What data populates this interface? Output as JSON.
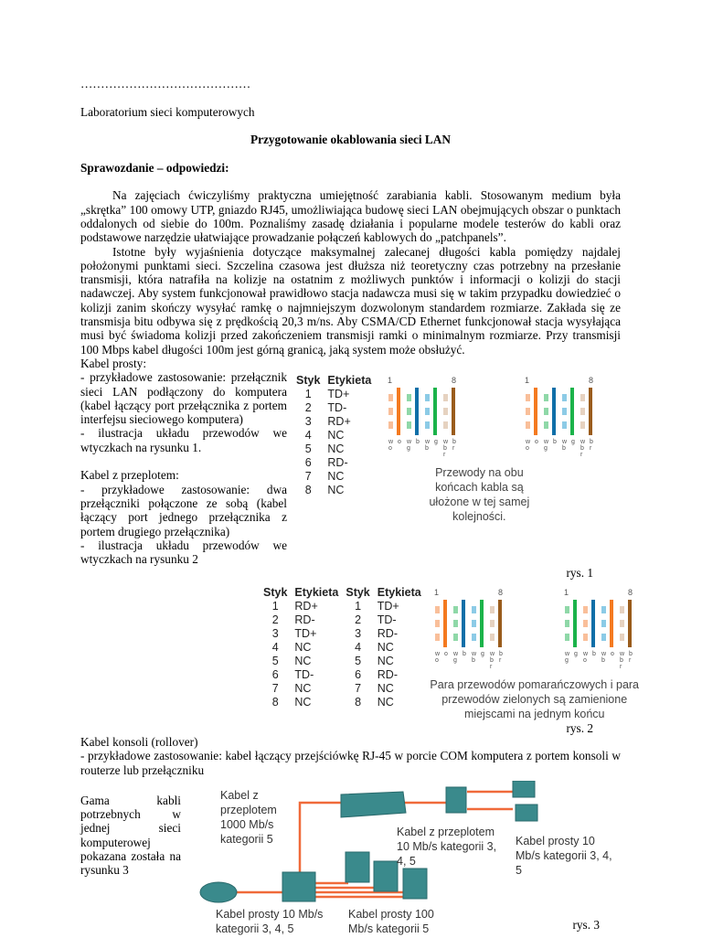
{
  "header": {
    "dots": "……………………………………",
    "lab": "Laboratorium sieci komputerowych",
    "title": "Przygotowanie okablowania sieci LAN",
    "section": "Sprawozdanie – odpowiedzi:"
  },
  "paragraphs": [
    "Na zajęciach ćwiczyliśmy praktyczna umiejętność zarabiania kabli. Stosowanym medium była „skrętka” 100 omowy UTP, gniazdo RJ45, umożliwiająca budowę sieci LAN obejmujących obszar o punktach oddalonych od siebie do 100m. Poznaliśmy zasadę działania i popularne modele testerów do kabli oraz podstawowe narzędzie ułatwiające prowadzanie połączeń kablowych do „patchpanels”.",
    "Istotne były wyjaśnienia dotyczące maksymalnej zalecanej długości kabla pomiędzy najdalej położonymi punktami sieci. Szczelina czasowa jest dłuższa niż teoretyczny czas potrzebny na przesłanie transmisji, która natrafiła na kolizje na ostatnim z możliwych punktów i informacji o kolizji do stacji nadawczej. Aby system funkcjonował prawidłowo stacja nadawcza musi się w takim przypadku dowiedzieć o kolizji zanim skończy wysyłać ramkę o najmniejszym dozwolonym standardem rozmiarze. Zakłada się ze transmisja bitu odbywa się z prędkością 20,3 m/ns.  Aby CSMA/CD Ethernet funkcjonował stacja wysyłająca musi być świadoma kolizji przed zakończeniem transmisji ramki o minimalnym rozmiarze. Przy transmisji 100 Mbps kabel długości 100m jest górną granicą, jaką system może obsłużyć."
  ],
  "straight": {
    "heading": "Kabel prosty:",
    "use": "- przykładowe zastosowanie: przełącznik sieci LAN podłączony do komputera (kabel łączący port przełącznika z portem interfejsu sieciowego komputera)",
    "ill": "- ilustracja układu przewodów we wtyczkach na rysunku 1."
  },
  "cross": {
    "heading": "Kabel z przeplotem:",
    "use": "- przykładowe zastosowanie: dwa przełączniki połączone ze sobą (kabel łączący port jednego przełącznika z portem drugiego przełącznika)",
    "ill": "- ilustracja układu przewodów we wtyczkach na  rysunku 2"
  },
  "fig1": {
    "col_styk": "Styk",
    "col_label": "Etykieta",
    "rows": [
      [
        "1",
        "TD+"
      ],
      [
        "2",
        "TD-"
      ],
      [
        "3",
        "RD+"
      ],
      [
        "4",
        "NC"
      ],
      [
        "5",
        "NC"
      ],
      [
        "6",
        "RD-"
      ],
      [
        "7",
        "NC"
      ],
      [
        "8",
        "NC"
      ]
    ],
    "pin_first": "1",
    "pin_last": "8",
    "caption": "Przewody na obu końcach kabla są ułożone w tej samej kolejności.",
    "rys": "rys. 1",
    "left_wires": [
      "wo",
      "o",
      "wg",
      "b",
      "wb",
      "g",
      "wbr",
      "br"
    ],
    "right_wires": [
      "wo",
      "o",
      "wg",
      "b",
      "wb",
      "g",
      "wbr",
      "br"
    ]
  },
  "fig2": {
    "col_styk": "Styk",
    "col_label": "Etykieta",
    "left_rows": [
      [
        "1",
        "RD+"
      ],
      [
        "2",
        "RD-"
      ],
      [
        "3",
        "TD+"
      ],
      [
        "4",
        "NC"
      ],
      [
        "5",
        "NC"
      ],
      [
        "6",
        "TD-"
      ],
      [
        "7",
        "NC"
      ],
      [
        "8",
        "NC"
      ]
    ],
    "right_rows": [
      [
        "1",
        "TD+"
      ],
      [
        "2",
        "TD-"
      ],
      [
        "3",
        "RD-"
      ],
      [
        "4",
        "NC"
      ],
      [
        "5",
        "NC"
      ],
      [
        "6",
        "RD-"
      ],
      [
        "7",
        "NC"
      ],
      [
        "8",
        "NC"
      ]
    ],
    "pin_first": "1",
    "pin_last": "8",
    "caption": "Para przewodów pomarańczowych i para przewodów zielonych są zamienione miejscami na jednym końcu",
    "rys": "rys. 2",
    "left_wires": [
      "wo",
      "o",
      "wg",
      "b",
      "wb",
      "g",
      "wbr",
      "br"
    ],
    "right_wires": [
      "wg",
      "g",
      "wo",
      "b",
      "wb",
      "o",
      "wbr",
      "br"
    ]
  },
  "console": {
    "heading": "Kabel konsoli (rollover)",
    "use": "- przykładowe zastosowanie: kabel łączący przejściówkę RJ-45 w porcie COM komputera z portem konsoli w routerze lub przełączniku",
    "gama": "Gama kabli potrzebnych w jednej sieci komputerowej pokazana została na rysunku 3"
  },
  "fig3": {
    "l1": "Kabel z przeplotem 1000 Mb/s kategorii 5",
    "l2": "Kabel z przeplotem 10 Mb/s kategorii 3, 4, 5",
    "l3": "Kabel prosty 10 Mb/s kategorii 3, 4, 5",
    "l4": "Kabel prosty 10 Mb/s kategorii 3, 4, 5",
    "l5": "Kabel prosty 100 Mb/s kategorii 5",
    "rys": "rys. 3",
    "device_color": "#3a8a8c",
    "cable_color": "#f06a3a"
  },
  "colors": {
    "o": "#f47a20",
    "g": "#1bb34a",
    "b": "#0f6fa8",
    "br": "#9a5c1c",
    "lo": "#f9bf9a",
    "lg": "#8fd8a8",
    "lb": "#8ccbe6",
    "lbr": "#e6d2c0",
    "arrow": "#f06a3a"
  }
}
